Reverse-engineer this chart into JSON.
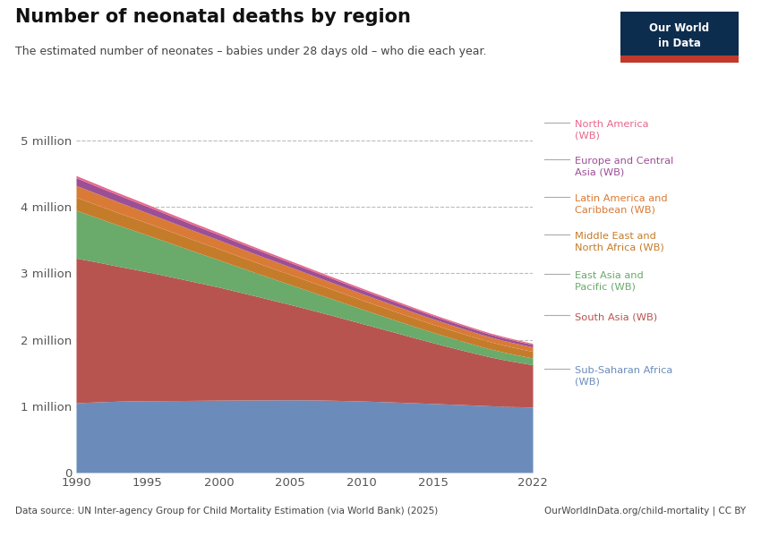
{
  "title": "Number of neonatal deaths by region",
  "subtitle": "The estimated number of neonates – babies under 28 days old – who die each year.",
  "source": "Data source: UN Inter-agency Group for Child Mortality Estimation (via World Bank) (2025)",
  "source_right": "OurWorldInData.org/child-mortality | CC BY",
  "years": [
    1990,
    1991,
    1992,
    1993,
    1994,
    1995,
    1996,
    1997,
    1998,
    1999,
    2000,
    2001,
    2002,
    2003,
    2004,
    2005,
    2006,
    2007,
    2008,
    2009,
    2010,
    2011,
    2012,
    2013,
    2014,
    2015,
    2016,
    2017,
    2018,
    2019,
    2020,
    2021,
    2022
  ],
  "regions": [
    {
      "name": "Sub-Saharan Africa\n(WB)",
      "color": "#6b8cba",
      "values": [
        1050000,
        1060000,
        1068000,
        1075000,
        1080000,
        1082000,
        1083000,
        1084000,
        1086000,
        1088000,
        1090000,
        1091000,
        1092000,
        1093000,
        1094000,
        1095000,
        1094000,
        1092000,
        1088000,
        1083000,
        1077000,
        1071000,
        1064000,
        1056000,
        1048000,
        1040000,
        1032000,
        1024000,
        1015000,
        1006000,
        998000,
        992000,
        985000
      ]
    },
    {
      "name": "South Asia (WB)",
      "color": "#b85450",
      "values": [
        2180000,
        2130000,
        2080000,
        2030000,
        1985000,
        1940000,
        1895000,
        1848000,
        1800000,
        1752000,
        1703000,
        1650000,
        1597000,
        1544000,
        1490000,
        1436000,
        1382000,
        1328000,
        1275000,
        1222000,
        1170000,
        1118000,
        1067000,
        1016000,
        965000,
        916000,
        868000,
        822000,
        778000,
        736000,
        700000,
        668000,
        638000
      ]
    },
    {
      "name": "East Asia and\nPacific (WB)",
      "color": "#6aaa6a",
      "values": [
        720000,
        685000,
        651000,
        618000,
        586000,
        555000,
        524000,
        494000,
        465000,
        437000,
        411000,
        387000,
        364000,
        342000,
        321000,
        301000,
        283000,
        265000,
        249000,
        233000,
        218000,
        204000,
        191000,
        179000,
        167000,
        156000,
        146000,
        137000,
        128000,
        120000,
        113000,
        107000,
        102000
      ]
    },
    {
      "name": "Middle East and\nNorth Africa (WB)",
      "color": "#c47c2a",
      "values": [
        196000,
        193000,
        190000,
        187000,
        184000,
        181000,
        178000,
        175000,
        172000,
        169000,
        166000,
        163000,
        160000,
        157000,
        154000,
        151000,
        148000,
        145000,
        142000,
        139000,
        136000,
        133000,
        130000,
        127000,
        124000,
        121000,
        118000,
        115000,
        112000,
        109000,
        106000,
        103000,
        100000
      ]
    },
    {
      "name": "Latin America and\nCaribbean (WB)",
      "color": "#d97b37",
      "values": [
        178000,
        173000,
        168000,
        163000,
        158000,
        153000,
        149000,
        145000,
        141000,
        137000,
        133000,
        129000,
        125000,
        121000,
        118000,
        114000,
        110000,
        106000,
        103000,
        100000,
        97000,
        94000,
        91000,
        88000,
        85000,
        82000,
        80000,
        77000,
        74000,
        72000,
        70000,
        68000,
        66000
      ]
    },
    {
      "name": "Europe and Central\nAsia (WB)",
      "color": "#9b4f96",
      "values": [
        115000,
        111000,
        107000,
        104000,
        100000,
        97000,
        93000,
        90000,
        87000,
        84000,
        81000,
        78000,
        76000,
        73000,
        71000,
        68000,
        66000,
        64000,
        62000,
        60000,
        58000,
        56000,
        54000,
        52000,
        50000,
        48000,
        46000,
        44000,
        43000,
        41000,
        40000,
        38000,
        37000
      ]
    },
    {
      "name": "North America\n(WB)",
      "color": "#e8688a",
      "values": [
        34000,
        33500,
        33000,
        32500,
        32000,
        31500,
        31000,
        30500,
        30000,
        29500,
        29000,
        28500,
        28000,
        27500,
        27000,
        26500,
        26000,
        25500,
        25000,
        24500,
        24000,
        23500,
        23000,
        22500,
        22000,
        21500,
        21000,
        20500,
        20000,
        19500,
        19000,
        18500,
        18000
      ]
    }
  ],
  "ylim": [
    0,
    5500000
  ],
  "yticks": [
    0,
    1000000,
    2000000,
    3000000,
    4000000,
    5000000
  ],
  "ytick_labels": [
    "0",
    "1 million",
    "2 million",
    "3 million",
    "4 million",
    "5 million"
  ],
  "xticks": [
    1990,
    1995,
    2000,
    2005,
    2010,
    2015,
    2022
  ],
  "background_color": "#ffffff",
  "logo_bg_top": "#0d2d4e",
  "logo_bg_bottom": "#c0392b",
  "legend_items": [
    {
      "label": "North America\n(WB)",
      "color": "#e8688a"
    },
    {
      "label": "Europe and Central\nAsia (WB)",
      "color": "#9b4f96"
    },
    {
      "label": "Latin America and\nCaribbean (WB)",
      "color": "#d97b37"
    },
    {
      "label": "Middle East and\nNorth Africa (WB)",
      "color": "#c47c2a"
    },
    {
      "label": "East Asia and\nPacific (WB)",
      "color": "#6aaa6a"
    },
    {
      "label": "South Asia (WB)",
      "color": "#b85450"
    },
    {
      "label": "Sub-Saharan Africa\n(WB)",
      "color": "#6b8cba"
    }
  ]
}
